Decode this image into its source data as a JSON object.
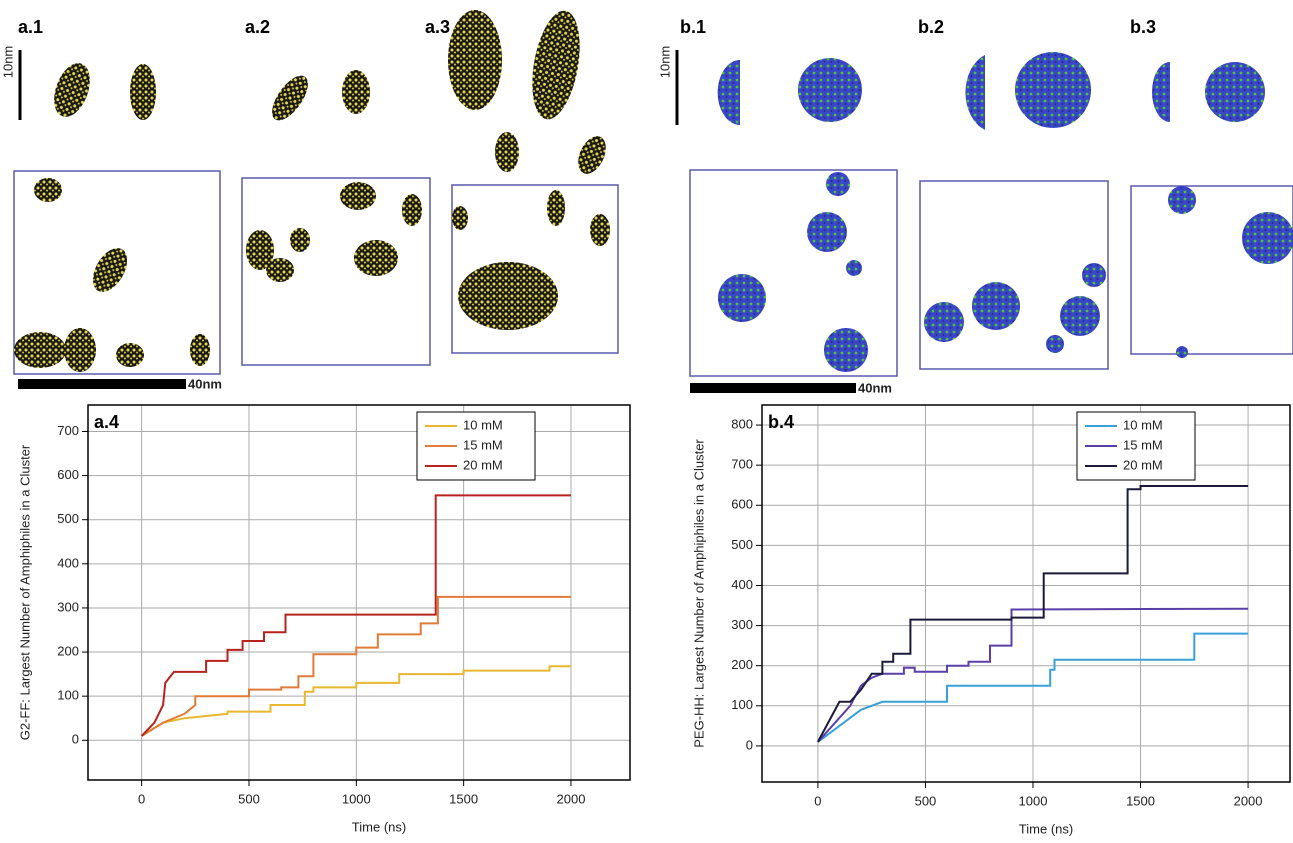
{
  "panel_labels": [
    "a.1",
    "a.2",
    "a.3",
    "a.4",
    "b.1",
    "b.2",
    "b.3",
    "b.4"
  ],
  "scale_labels": [
    "10nm",
    "40nm",
    "10nm",
    "40nm"
  ],
  "chart_data": [
    {
      "type": "line",
      "ylabel": "G2-FF: Largest Number of Amphiphiles in a Cluster",
      "xlabel": "Time (ns)",
      "xlim": [
        -250,
        2275
      ],
      "ylim": [
        -90,
        760
      ],
      "xticks": [
        0,
        500,
        1000,
        1500,
        2000
      ],
      "yticks": [
        0,
        100,
        200,
        300,
        400,
        500,
        600,
        700
      ],
      "grid": true,
      "legend": "top-right",
      "series": [
        {
          "name": "10 mM",
          "color": "#e8b830",
          "x": [
            0,
            100,
            200,
            400,
            400,
            600,
            600,
            760,
            760,
            800,
            800,
            1000,
            1000,
            1200,
            1200,
            1500,
            1500,
            1900,
            1900,
            2000
          ],
          "values": [
            10,
            40,
            50,
            60,
            65,
            65,
            80,
            80,
            110,
            110,
            120,
            120,
            130,
            130,
            150,
            150,
            158,
            158,
            168,
            168
          ]
        },
        {
          "name": "15 mM",
          "color": "#e07b39",
          "x": [
            0,
            100,
            200,
            250,
            250,
            500,
            500,
            650,
            650,
            730,
            730,
            800,
            800,
            1000,
            1000,
            1100,
            1100,
            1300,
            1300,
            1380,
            1380,
            2000
          ],
          "values": [
            10,
            40,
            60,
            80,
            100,
            100,
            115,
            115,
            120,
            120,
            145,
            145,
            195,
            195,
            210,
            210,
            240,
            240,
            265,
            265,
            325,
            325
          ]
        },
        {
          "name": "20 mM",
          "color": "#b8231f",
          "x": [
            0,
            60,
            100,
            110,
            150,
            300,
            300,
            400,
            400,
            470,
            470,
            570,
            570,
            670,
            670,
            1370,
            1370,
            2000
          ],
          "values": [
            10,
            40,
            80,
            130,
            155,
            155,
            180,
            180,
            205,
            205,
            225,
            225,
            245,
            245,
            285,
            285,
            555,
            555
          ]
        }
      ]
    },
    {
      "type": "line",
      "ylabel": "PEG-HH: Largest Number of Amphiphiles in a Cluster",
      "xlabel": "Time (ns)",
      "xlim": [
        -260,
        2195
      ],
      "ylim": [
        -90,
        850
      ],
      "xticks": [
        0,
        500,
        1000,
        1500,
        2000
      ],
      "yticks": [
        0,
        100,
        200,
        300,
        400,
        500,
        600,
        700,
        800
      ],
      "grid": true,
      "legend": "top-right",
      "series": [
        {
          "name": "10 mM",
          "color": "#3aa0d8",
          "x": [
            0,
            100,
            200,
            300,
            400,
            550,
            600,
            600,
            1080,
            1080,
            1100,
            1100,
            1750,
            1750,
            2000
          ],
          "values": [
            10,
            50,
            90,
            110,
            110,
            110,
            110,
            150,
            150,
            190,
            190,
            215,
            215,
            280,
            280
          ]
        },
        {
          "name": "15 mM",
          "color": "#5b3fa8",
          "x": [
            0,
            150,
            200,
            250,
            300,
            400,
            400,
            450,
            450,
            600,
            600,
            700,
            700,
            800,
            800,
            900,
            900,
            2000
          ],
          "values": [
            10,
            100,
            150,
            170,
            180,
            180,
            195,
            195,
            185,
            185,
            200,
            200,
            210,
            210,
            250,
            250,
            340,
            342
          ]
        },
        {
          "name": "20 mM",
          "color": "#1a1a3a",
          "x": [
            0,
            100,
            150,
            200,
            250,
            300,
            300,
            350,
            350,
            430,
            430,
            900,
            900,
            1050,
            1050,
            1440,
            1440,
            1500,
            1500,
            2000
          ],
          "values": [
            10,
            110,
            110,
            140,
            180,
            180,
            210,
            210,
            230,
            230,
            315,
            315,
            320,
            320,
            430,
            430,
            640,
            640,
            648,
            648
          ]
        }
      ]
    }
  ]
}
